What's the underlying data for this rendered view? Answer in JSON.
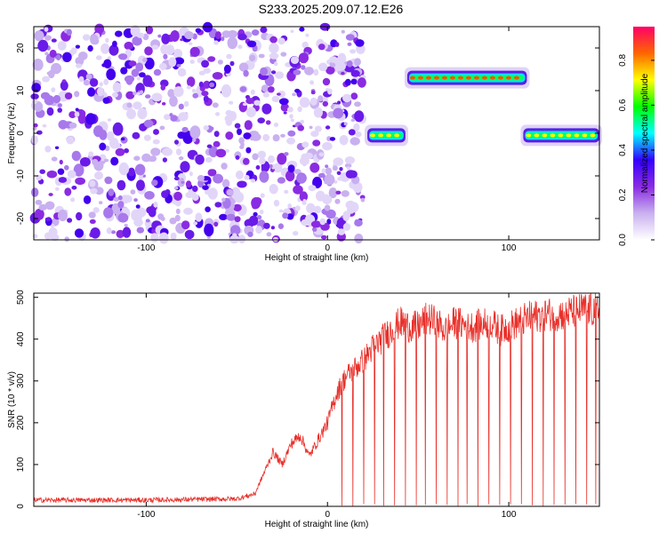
{
  "title": "S233.2025.209.07.12.E26",
  "chart_data": [
    {
      "type": "heatmap",
      "xlabel": "Height of straight line (km)",
      "ylabel": "Frequency (Hz)",
      "xlim": [
        -162,
        150
      ],
      "ylim": [
        -25,
        25
      ],
      "xticks": [
        -100,
        0,
        100
      ],
      "yticks": [
        -20,
        -10,
        0,
        10,
        20
      ],
      "colorbar": {
        "label": "Normalized spectral amplitude",
        "range": [
          0,
          0.95
        ],
        "ticks": [
          0.0,
          0.2,
          0.4,
          0.6,
          0.8
        ],
        "colors": [
          "#ffffff",
          "#c9b0f0",
          "#8a2be2",
          "#3300ff",
          "#00ffff",
          "#00ff00",
          "#ffff00",
          "#ff6600",
          "#ff0066"
        ]
      },
      "bands": [
        {
          "x_start": 22,
          "x_end": 43,
          "freq": -0.5,
          "amplitude": 0.55
        },
        {
          "x_start": 44,
          "x_end": 110,
          "freq": 13,
          "amplitude": 0.85
        },
        {
          "x_start": 108,
          "x_end": 150,
          "freq": -0.5,
          "amplitude": 0.55
        }
      ],
      "noise_region": {
        "x_start": -162,
        "x_end": 20,
        "amplitude": 0.1
      }
    },
    {
      "type": "line",
      "xlabel": "Height of straight line (km)",
      "ylabel": "SNR (10 * v/v)",
      "xlim": [
        -162,
        150
      ],
      "ylim": [
        0,
        510
      ],
      "xticks": [
        -100,
        0,
        100
      ],
      "yticks": [
        0,
        100,
        200,
        300,
        400,
        500
      ],
      "color": "#e8302a",
      "series": [
        {
          "x": [
            -162,
            -100,
            -50,
            -40,
            -35,
            -30,
            -25,
            -20,
            -15,
            -10,
            -5,
            0,
            5,
            10,
            15,
            20,
            25,
            30,
            35,
            40,
            45,
            50,
            55,
            60,
            65,
            70,
            80,
            90,
            95,
            100,
            110,
            120,
            130,
            140,
            150
          ],
          "values": [
            15,
            15,
            18,
            30,
            80,
            130,
            100,
            150,
            170,
            120,
            160,
            200,
            270,
            310,
            330,
            350,
            380,
            400,
            420,
            440,
            430,
            430,
            450,
            440,
            420,
            440,
            430,
            440,
            420,
            430,
            450,
            460,
            460,
            470,
            470
          ]
        }
      ],
      "dropouts": [
        8,
        14,
        20,
        26,
        31,
        37,
        43,
        49,
        54,
        60,
        66,
        72,
        77,
        83,
        89,
        95,
        101,
        107,
        113,
        119,
        125,
        131,
        137,
        143,
        148
      ]
    }
  ]
}
